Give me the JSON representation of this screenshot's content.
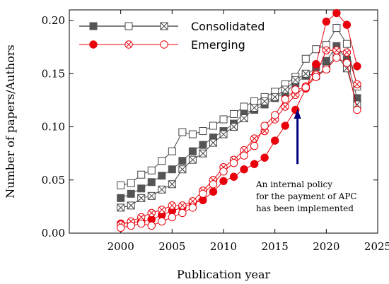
{
  "chart_data": {
    "type": "line",
    "xlabel": "Publication year",
    "ylabel": "Number of papers/Authors",
    "xlim": [
      1995,
      2025
    ],
    "ylim": [
      0.0,
      0.21
    ],
    "xticks": [
      "2000",
      "2005",
      "2010",
      "2015",
      "2020",
      "2025"
    ],
    "yticks": [
      "0.00",
      "0.05",
      "0.10",
      "0.15",
      "0.20"
    ],
    "x": [
      2000,
      2001,
      2002,
      2003,
      2004,
      2005,
      2006,
      2007,
      2008,
      2009,
      2010,
      2011,
      2012,
      2013,
      2014,
      2015,
      2016,
      2017,
      2018,
      2019,
      2020,
      2021,
      2022,
      2023
    ],
    "legend": {
      "placement": "top-center",
      "groups": [
        {
          "label": "Consolidated",
          "color": "#000000"
        },
        {
          "label": "Emerging",
          "color": "#e8000b"
        }
      ]
    },
    "series": [
      {
        "group": "Consolidated",
        "marker": "square-filled",
        "color": "#555555",
        "values": [
          0.033,
          0.037,
          0.042,
          0.048,
          0.054,
          0.06,
          0.068,
          0.077,
          0.083,
          0.09,
          0.096,
          0.103,
          0.113,
          0.116,
          0.121,
          0.127,
          0.132,
          0.141,
          0.148,
          0.156,
          0.162,
          0.176,
          0.163,
          0.127
        ]
      },
      {
        "group": "Consolidated",
        "marker": "square-open",
        "color": "#444444",
        "values": [
          0.045,
          0.047,
          0.055,
          0.059,
          0.068,
          0.077,
          0.095,
          0.093,
          0.096,
          0.101,
          0.107,
          0.112,
          0.119,
          0.124,
          0.128,
          0.133,
          0.14,
          0.147,
          0.164,
          0.173,
          0.177,
          0.193,
          0.178,
          0.138
        ]
      },
      {
        "group": "Consolidated",
        "marker": "square-x",
        "color": "#444444",
        "values": [
          0.024,
          0.026,
          0.033,
          0.035,
          0.041,
          0.046,
          0.06,
          0.069,
          0.075,
          0.085,
          0.093,
          0.1,
          0.108,
          0.118,
          0.124,
          0.128,
          0.135,
          0.144,
          0.15,
          0.148,
          0.155,
          0.167,
          0.155,
          0.121
        ]
      },
      {
        "group": "Emerging",
        "marker": "circle-filled",
        "color": "#e8000b",
        "values": [
          0.009,
          0.01,
          0.011,
          0.013,
          0.017,
          0.021,
          0.024,
          0.028,
          0.031,
          0.039,
          0.049,
          0.053,
          0.06,
          0.065,
          0.071,
          0.087,
          0.101,
          0.116,
          0.136,
          0.159,
          0.199,
          0.207,
          0.196,
          0.157
        ]
      },
      {
        "group": "Emerging",
        "marker": "circle-x",
        "color": "#e8000b",
        "values": [
          0.008,
          0.011,
          0.015,
          0.019,
          0.022,
          0.026,
          0.026,
          0.03,
          0.04,
          0.05,
          0.062,
          0.069,
          0.078,
          0.089,
          0.096,
          0.107,
          0.119,
          0.13,
          0.138,
          0.149,
          0.172,
          0.172,
          0.17,
          0.14
        ]
      },
      {
        "group": "Emerging",
        "marker": "circle-open",
        "color": "#e8000b",
        "values": [
          0.005,
          0.007,
          0.009,
          0.007,
          0.011,
          0.015,
          0.019,
          0.024,
          0.037,
          0.046,
          0.058,
          0.066,
          0.073,
          0.082,
          0.101,
          0.111,
          0.126,
          0.135,
          0.137,
          0.147,
          0.154,
          0.165,
          0.16,
          0.116
        ]
      }
    ],
    "annotation": {
      "lines": [
        "An internal policy",
        "for the payment of APC",
        "has been implemented"
      ],
      "arrow_x": 2017.2,
      "arrow_y_from": 0.065,
      "arrow_y_to": 0.117,
      "arrow_color": "#000080"
    }
  }
}
